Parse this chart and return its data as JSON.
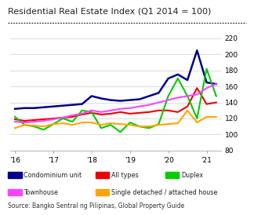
{
  "title": "Residential Real Estate Index (Q1 2014 = 100)",
  "source": "Source: Bangko Sentral ng Pilipinas, Global Property Guide",
  "ylim": [
    80,
    225
  ],
  "yticks": [
    80,
    100,
    120,
    140,
    160,
    180,
    200,
    220
  ],
  "xtick_positions": [
    0,
    4,
    8,
    12,
    16,
    20
  ],
  "xtick_labels": [
    "'16",
    "'17",
    "'18",
    "'19",
    "'20",
    "'21"
  ],
  "series": {
    "Condominium unit": {
      "color": "#00008B",
      "linewidth": 1.8,
      "values": [
        132,
        133,
        133,
        134,
        135,
        136,
        137,
        138,
        148,
        145,
        143,
        142,
        143,
        144,
        148,
        152,
        170,
        175,
        168,
        205,
        165,
        163
      ]
    },
    "All types": {
      "color": "#EE0000",
      "linewidth": 1.5,
      "values": [
        119,
        117,
        118,
        119,
        120,
        121,
        122,
        125,
        127,
        125,
        126,
        128,
        126,
        127,
        128,
        130,
        130,
        128,
        135,
        158,
        138,
        140
      ]
    },
    "Duplex": {
      "color": "#00CC00",
      "linewidth": 1.5,
      "values": [
        122,
        112,
        110,
        106,
        113,
        120,
        116,
        130,
        128,
        108,
        112,
        103,
        115,
        110,
        108,
        113,
        148,
        170,
        148,
        120,
        182,
        148
      ]
    },
    "Townhouse": {
      "color": "#FF44FF",
      "linewidth": 1.5,
      "values": [
        116,
        115,
        116,
        117,
        119,
        121,
        124,
        126,
        130,
        128,
        130,
        132,
        133,
        135,
        137,
        140,
        143,
        146,
        148,
        150,
        158,
        163
      ]
    },
    "Single detached / attached house": {
      "color": "#FFA500",
      "linewidth": 1.5,
      "values": [
        108,
        112,
        111,
        110,
        113,
        114,
        112,
        115,
        115,
        112,
        114,
        113,
        112,
        110,
        110,
        112,
        113,
        114,
        130,
        115,
        122,
        122
      ]
    }
  },
  "legend": [
    {
      "label": "Condominium unit",
      "color": "#00008B"
    },
    {
      "label": "All types",
      "color": "#EE0000"
    },
    {
      "label": "Duplex",
      "color": "#00CC00"
    },
    {
      "label": "Townhouse",
      "color": "#FF44FF"
    },
    {
      "label": "Single detached / attached house",
      "color": "#FFA500"
    }
  ],
  "background_color": "#FFFFFF",
  "grid_color": "#CCCCCC"
}
